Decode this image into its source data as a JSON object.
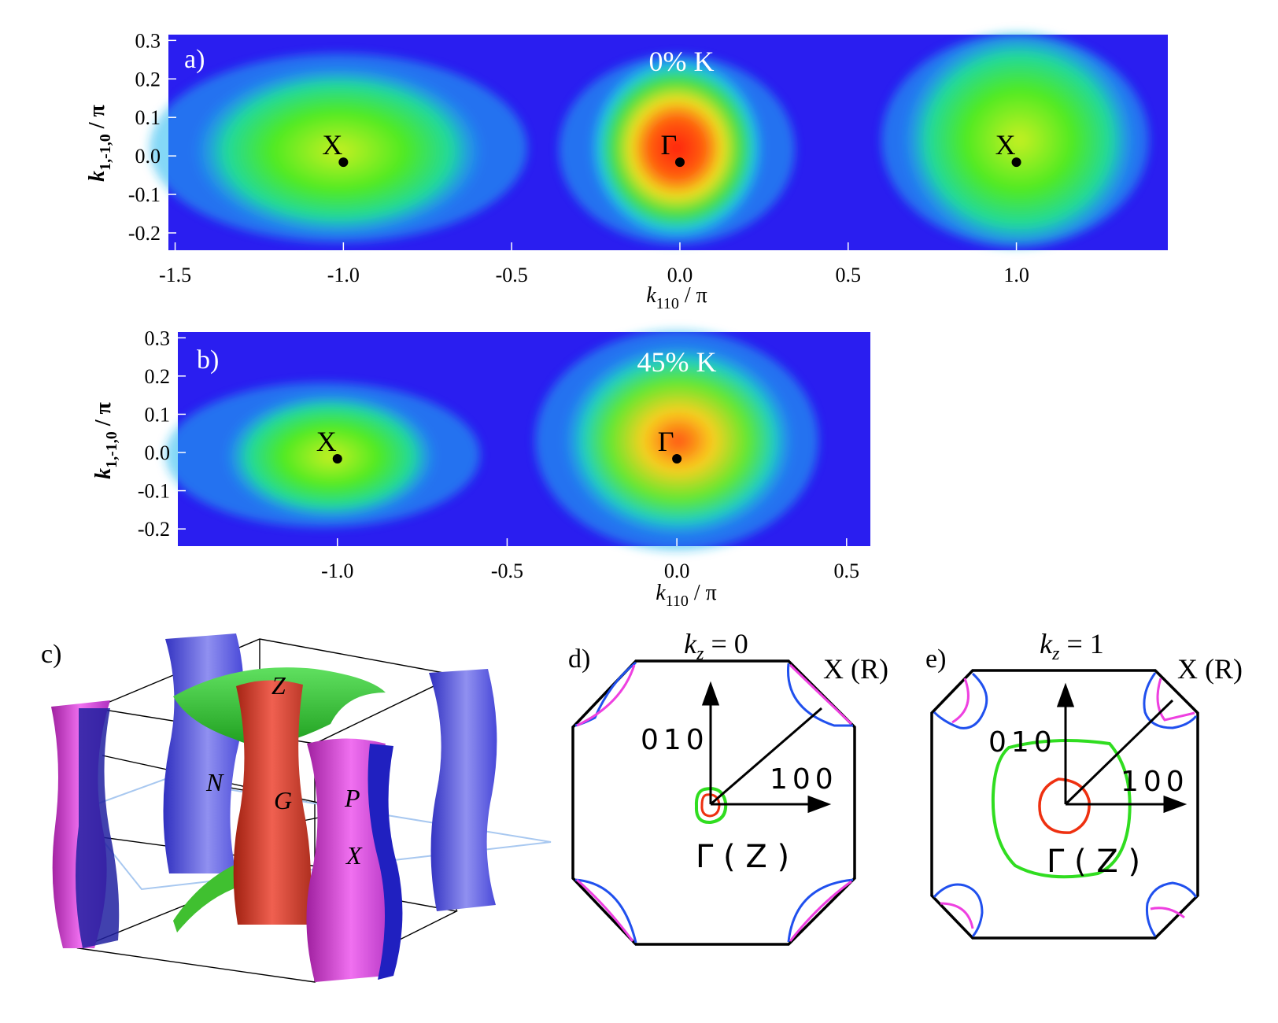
{
  "panels": {
    "a": {
      "label": "a)",
      "title": "0% K",
      "x_ticks": [
        "-1.5",
        "-1.0",
        "-0.5",
        "0.0",
        "0.5",
        "1.0"
      ],
      "y_ticks": [
        "0.3",
        "0.2",
        "0.1",
        "0.0",
        "-0.1",
        "-0.2"
      ],
      "xlabel_main": "k",
      "xlabel_sub": "110",
      "xlabel_tail": " / π",
      "ylabel_main": "k",
      "ylabel_sub": "1,-1,0",
      "ylabel_tail": " / π",
      "points": [
        {
          "label": "X",
          "x": -1.0
        },
        {
          "label": "Γ",
          "x": 0.0
        },
        {
          "label": "X",
          "x": 1.0
        }
      ]
    },
    "b": {
      "label": "b)",
      "title": "45% K",
      "x_ticks": [
        "-1.0",
        "-0.5",
        "0.0",
        "0.5"
      ],
      "y_ticks": [
        "0.3",
        "0.2",
        "0.1",
        "0.0",
        "-0.1",
        "-0.2"
      ],
      "xlabel_main": "k",
      "xlabel_sub": "110",
      "xlabel_tail": " / π",
      "ylabel_main": "k",
      "ylabel_sub": "1,-1,0",
      "ylabel_tail": " / π",
      "points": [
        {
          "label": "X",
          "x": -1.0
        },
        {
          "label": "Γ",
          "x": 0.0
        }
      ]
    },
    "c": {
      "label": "c)",
      "labels": {
        "z": "Z",
        "n": "N",
        "g": "G",
        "p": "P",
        "x": "X"
      }
    },
    "d": {
      "label": "d)",
      "kz_k": "k",
      "kz_sub": "z",
      "kz_val": " = 0",
      "corner": "X (R)",
      "dir_y": "010",
      "dir_x": "100",
      "center": "Γ ( Z )"
    },
    "e": {
      "label": "e)",
      "kz_k": "k",
      "kz_sub": "z",
      "kz_val": " = 1",
      "corner": "X (R)",
      "dir_y": "010",
      "dir_x": "100",
      "center": "Γ ( Z )"
    }
  },
  "colors": {
    "map_low": "#2a1ef0",
    "map_mid": "#22e060",
    "map_high": "#ff3010",
    "pocket_blue": "#2050ee",
    "pocket_magenta": "#ee40e0",
    "pocket_green": "#30dd20",
    "pocket_red": "#ee3010"
  }
}
